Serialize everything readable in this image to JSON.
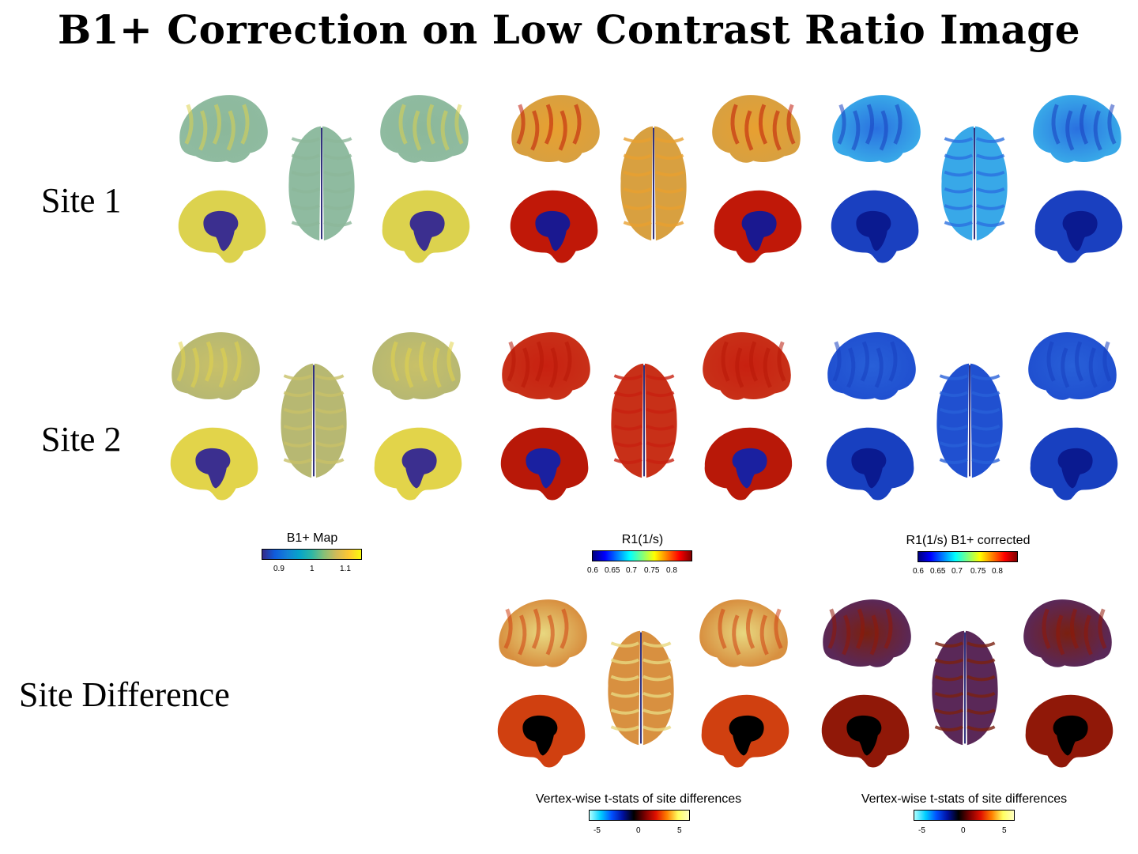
{
  "title": "B1+ Correction on Low Contrast Ratio Image",
  "row_labels": {
    "site1": "Site 1",
    "site2": "Site 2",
    "site_diff": "Site Difference"
  },
  "colorbars": {
    "b1": {
      "title": "B1+ Map",
      "ticks": [
        "0.9",
        "1",
        "1.1"
      ]
    },
    "r1": {
      "title": "R1(1/s)",
      "ticks": [
        "0.6",
        "0.65",
        "0.7",
        "0.75",
        "0.8"
      ]
    },
    "r1c": {
      "title": "R1(1/s) B1+ corrected",
      "ticks": [
        "0.6",
        "0.65",
        "0.7",
        "0.75",
        "0.8"
      ]
    },
    "t1": {
      "title": "Vertex-wise t-stats of site differences",
      "ticks": [
        "-5",
        "0",
        "5"
      ]
    },
    "t2": {
      "title": "Vertex-wise t-stats of site differences",
      "ticks": [
        "-5",
        "0",
        "5"
      ]
    }
  },
  "colormaps": {
    "parula": [
      "#352a87",
      "#0f5cdd",
      "#1481d6",
      "#06a4ca",
      "#2eb7a4",
      "#87bf77",
      "#d1bb59",
      "#fec832",
      "#f9fb0e"
    ],
    "jet": [
      "#00007f",
      "#0000ff",
      "#007fff",
      "#00ffff",
      "#7fff7f",
      "#ffff00",
      "#ff7f00",
      "#ff0000",
      "#7f0000"
    ],
    "tstat": [
      "#b0ffff",
      "#00cfff",
      "#0050ff",
      "#0010a0",
      "#000000",
      "#7a0000",
      "#e01000",
      "#ff8000",
      "#ffff60",
      "#ffffc0"
    ]
  },
  "brain_colors": {
    "b1_site1": {
      "lat": "#8cb89a",
      "med_outer": "#dcd24e",
      "med_inner": "#3b2f8f",
      "dorsal": "#8fbba0"
    },
    "b1_site2": {
      "lat": "#c8c068",
      "med_outer": "#e2d44a",
      "med_inner": "#3b2f8f",
      "dorsal": "#b7b872"
    },
    "r1_site1": {
      "lat": "#e8a030",
      "med_outer": "#c01808",
      "med_inner": "#1a1890",
      "dorsal": "#d8a040"
    },
    "r1_site2": {
      "lat": "#c82010",
      "med_outer": "#b81808",
      "med_inner": "#1a20a0",
      "dorsal": "#c83018"
    },
    "r1c_site1": {
      "lat": "#2a70e0",
      "med_outer": "#1a40c0",
      "med_inner": "#0a1a90",
      "dorsal": "#38a8e8"
    },
    "r1c_site2": {
      "lat": "#2860d8",
      "med_outer": "#1840c0",
      "med_inner": "#0a1a90",
      "dorsal": "#2050d0"
    },
    "diff1": {
      "lat": "#e8d880",
      "med_outer": "#d04010",
      "med_inner": "#000000",
      "dorsal": "#d89040"
    },
    "diff2": {
      "lat": "#7a2010",
      "med_outer": "#901808",
      "med_inner": "#000000",
      "dorsal": "#5a2858"
    }
  }
}
